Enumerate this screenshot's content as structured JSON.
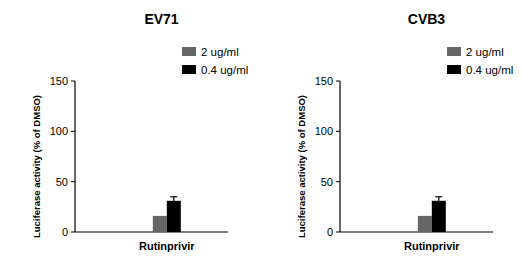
{
  "chart_data": [
    {
      "type": "bar",
      "title": "EV71",
      "y_label": "Luciferase activity (% of DMSO)",
      "categories": [
        "Rutinprivir"
      ],
      "series": [
        {
          "name": "2 ug/ml",
          "color": "#666666",
          "values": [
            16
          ]
        },
        {
          "name": "0.4 ug/ml",
          "color": "#000000",
          "values": [
            31
          ],
          "errors": [
            4
          ]
        }
      ],
      "ylim": [
        0,
        150
      ],
      "yticks": [
        0,
        50,
        100,
        150
      ],
      "legend": "upper right"
    },
    {
      "type": "bar",
      "title": "CVB3",
      "y_label": "Luciferase activity (% of DMSO)",
      "categories": [
        "Rutinprivir"
      ],
      "series": [
        {
          "name": "2 ug/ml",
          "color": "#666666",
          "values": [
            16
          ]
        },
        {
          "name": "0.4 ug/ml",
          "color": "#000000",
          "values": [
            31
          ],
          "errors": [
            4
          ]
        }
      ],
      "ylim": [
        0,
        150
      ],
      "yticks": [
        0,
        50,
        100,
        150
      ],
      "legend": "upper right"
    }
  ]
}
